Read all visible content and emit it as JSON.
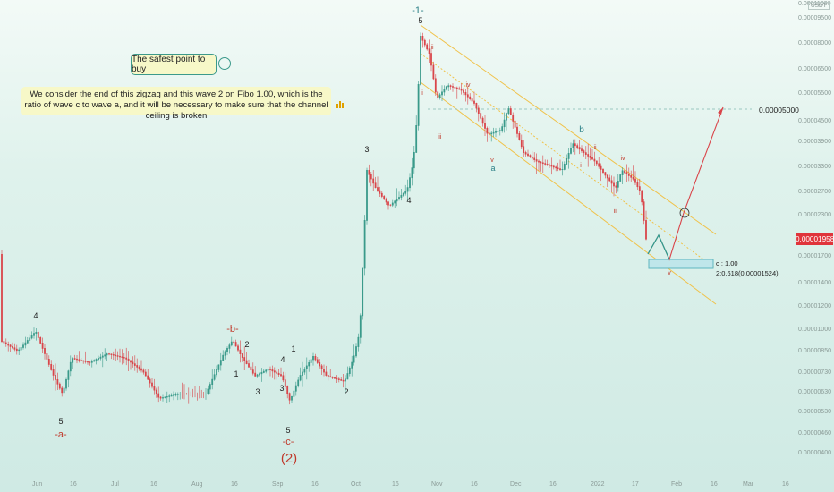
{
  "chart_data": {
    "type": "candlestick",
    "y_ticks": [
      "0.00011000",
      "0.00009500",
      "0.00008000",
      "0.00006500",
      "0.00005500",
      "0.00004500",
      "0.00003900",
      "0.00003300",
      "0.00002700",
      "0.00002300",
      "0.00001700",
      "0.00001400",
      "0.00001200",
      "0.00001000",
      "0.00000850",
      "0.00000730",
      "0.00000630",
      "0.00000530",
      "0.00000460",
      "0.00000400"
    ],
    "x_ticks": [
      "Jun",
      "16",
      "Jul",
      "16",
      "Aug",
      "16",
      "Sep",
      "16",
      "Oct",
      "16",
      "Nov",
      "16",
      "Dec",
      "16",
      "2022",
      "17",
      "Feb",
      "16",
      "Mar",
      "16"
    ],
    "current_price": "0.00001958",
    "target_price": "0.00005000",
    "fib_box_label_1": "c : 1.00",
    "fib_box_label_2": "2:0.618(0.00001524)",
    "quote_currency": "USDT",
    "wave_labels": [
      {
        "text": "4",
        "color": "#222"
      },
      {
        "text": "5",
        "color": "#222"
      },
      {
        "text": "-a-",
        "color": "#c0392b"
      },
      {
        "text": "-b-",
        "color": "#c0392b"
      },
      {
        "text": "2",
        "color": "#222"
      },
      {
        "text": "1",
        "color": "#222"
      },
      {
        "text": "3",
        "color": "#222"
      },
      {
        "text": "4",
        "color": "#222"
      },
      {
        "text": "1",
        "color": "#222"
      },
      {
        "text": "3",
        "color": "#222"
      },
      {
        "text": "5",
        "color": "#222"
      },
      {
        "text": "-c-",
        "color": "#c0392b"
      },
      {
        "text": "(2)",
        "color": "#c0392b"
      },
      {
        "text": "2",
        "color": "#222"
      },
      {
        "text": "3",
        "color": "#222"
      },
      {
        "text": "4",
        "color": "#222"
      },
      {
        "text": "-1-",
        "color": "#2a7f86"
      },
      {
        "text": "5",
        "color": "#222"
      },
      {
        "text": "ii",
        "color": "#c0392b"
      },
      {
        "text": "i",
        "color": "#c0392b"
      },
      {
        "text": "iii",
        "color": "#c0392b"
      },
      {
        "text": "iv",
        "color": "#c0392b"
      },
      {
        "text": "v",
        "color": "#c0392b"
      },
      {
        "text": "a",
        "color": "#2a7f86"
      },
      {
        "text": "b",
        "color": "#2a7f86"
      },
      {
        "text": "ii",
        "color": "#c0392b"
      },
      {
        "text": "i",
        "color": "#c0392b"
      },
      {
        "text": "iv",
        "color": "#c0392b"
      },
      {
        "text": "iii",
        "color": "#c0392b"
      },
      {
        "text": "v",
        "color": "#c0392b"
      }
    ],
    "colors": {
      "up": "#3a9a8a",
      "down": "#d9454a",
      "channel": "#f0c24a",
      "projection": "#d9454a",
      "fib_box": "#5fb7c0"
    }
  },
  "annotations": {
    "safe_point": "The safest point to buy",
    "main_note": "We consider the end of this zigzag and this wave 2 on Fibo 1.00, which is the ratio of wave c to wave a, and it will be necessary to make sure that the channel ceiling is broken"
  }
}
